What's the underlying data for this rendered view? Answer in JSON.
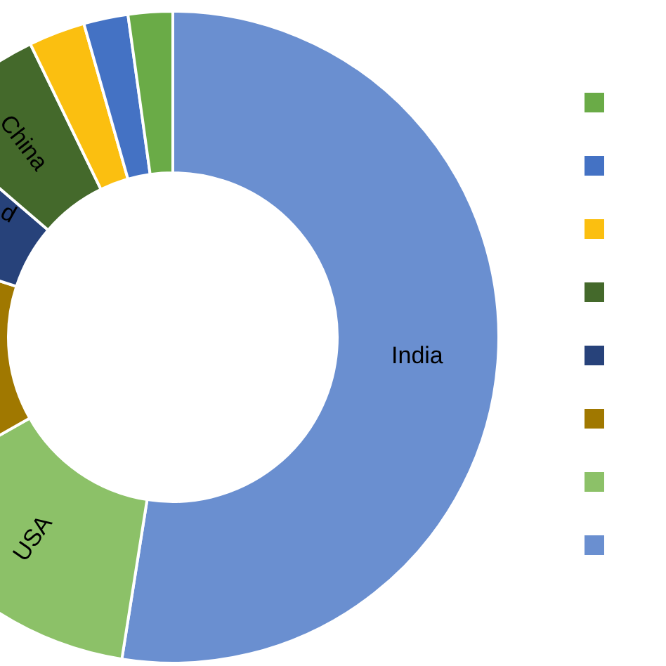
{
  "chart_data": {
    "type": "donut",
    "categories": [
      "India",
      "USA",
      null,
      "d",
      "China",
      null,
      null,
      null
    ],
    "values": [
      52.5,
      14.3,
      13.2,
      6.3,
      6.5,
      2.8,
      2.2,
      2.2
    ],
    "colors": [
      "#6a8fd0",
      "#8cc168",
      "#a07800",
      "#27427a",
      "#44692b",
      "#fbbf10",
      "#4472c4",
      "#6aab47"
    ]
  }
}
